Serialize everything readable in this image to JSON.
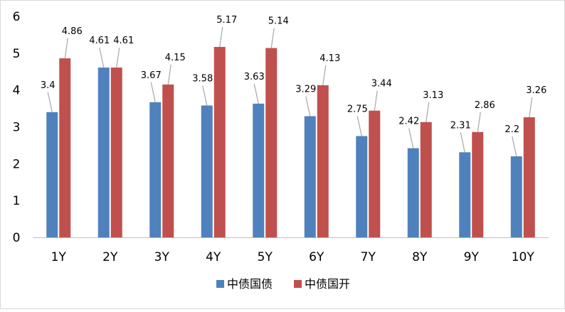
{
  "chart_data": {
    "type": "bar",
    "categories": [
      "1Y",
      "2Y",
      "3Y",
      "4Y",
      "5Y",
      "6Y",
      "7Y",
      "8Y",
      "9Y",
      "10Y"
    ],
    "series": [
      {
        "name": "中债国债",
        "color": "#4f81bd",
        "values": [
          3.4,
          4.61,
          3.67,
          3.58,
          3.63,
          3.29,
          2.75,
          2.42,
          2.31,
          2.2
        ]
      },
      {
        "name": "中债国开",
        "color": "#c0504d",
        "values": [
          4.86,
          4.61,
          4.15,
          5.17,
          5.14,
          4.13,
          3.44,
          3.13,
          2.86,
          3.26
        ]
      }
    ],
    "ylim": [
      0,
      6
    ],
    "yticks": [
      0,
      1,
      2,
      3,
      4,
      5,
      6
    ],
    "grid": false,
    "legend_position": "bottom",
    "data_labels": true
  }
}
